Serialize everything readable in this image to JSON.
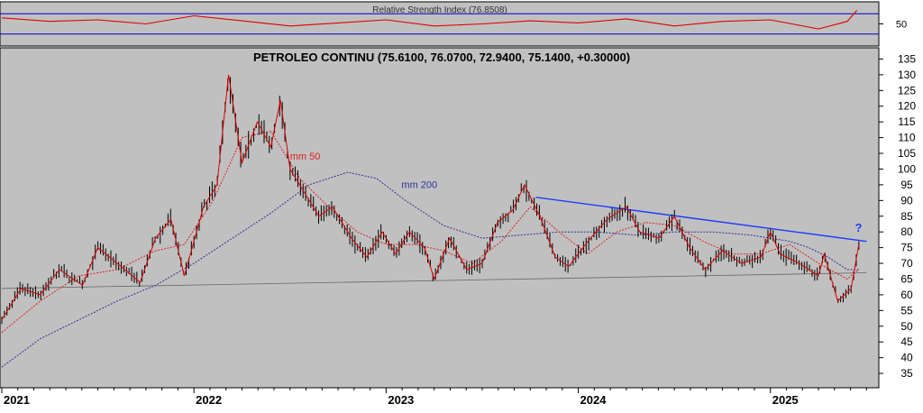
{
  "chart_data": [
    {
      "type": "line",
      "title": "Relative Strength Index (76.8508)",
      "yticks": [
        50
      ],
      "reference_lines": [
        70,
        30
      ],
      "last_value": 76.8508,
      "series": [
        {
          "x": [
            2021.0,
            2021.25,
            2021.5,
            2021.75,
            2022.0,
            2022.25,
            2022.5,
            2022.75,
            2023.0,
            2023.25,
            2023.5,
            2023.75,
            2024.0,
            2024.25,
            2024.5,
            2024.75,
            2025.0,
            2025.25,
            2025.4,
            2025.45
          ],
          "values": [
            62,
            55,
            58,
            50,
            66,
            56,
            46,
            52,
            58,
            46,
            50,
            56,
            52,
            60,
            46,
            55,
            58,
            40,
            55,
            76.85
          ]
        }
      ],
      "colors": {
        "series": "#e00000",
        "reference": "#0000cc"
      }
    },
    {
      "type": "line",
      "title": "PETROLEO CONTINU (75.6100, 76.0700, 72.9400, 75.1400, +0.30000)",
      "x_ticks": [
        "2021",
        "2022",
        "2023",
        "2024",
        "2025"
      ],
      "yticks": [
        35,
        40,
        45,
        50,
        55,
        60,
        65,
        70,
        75,
        80,
        85,
        90,
        95,
        100,
        105,
        110,
        115,
        120,
        125,
        130,
        135
      ],
      "ylim": [
        31,
        138
      ],
      "series": [
        {
          "name": "price",
          "x": [
            2021.0,
            2021.1,
            2021.2,
            2021.3,
            2021.42,
            2021.5,
            2021.6,
            2021.72,
            2021.8,
            2021.88,
            2021.95,
            2022.05,
            2022.12,
            2022.18,
            2022.25,
            2022.33,
            2022.4,
            2022.45,
            2022.5,
            2022.58,
            2022.65,
            2022.72,
            2022.82,
            2022.9,
            2022.98,
            2023.05,
            2023.12,
            2023.2,
            2023.25,
            2023.33,
            2023.42,
            2023.5,
            2023.58,
            2023.66,
            2023.72,
            2023.8,
            2023.88,
            2023.95,
            2024.05,
            2024.15,
            2024.25,
            2024.32,
            2024.42,
            2024.5,
            2024.58,
            2024.66,
            2024.75,
            2024.85,
            2024.95,
            2025.0,
            2025.05,
            2025.15,
            2025.25,
            2025.28,
            2025.35,
            2025.42,
            2025.46
          ],
          "values": [
            52,
            62,
            60,
            68,
            63,
            75,
            70,
            64,
            78,
            84,
            66,
            88,
            95,
            130,
            102,
            115,
            107,
            122,
            100,
            92,
            85,
            88,
            78,
            72,
            80,
            73,
            80,
            75,
            65,
            78,
            68,
            70,
            83,
            87,
            95,
            85,
            72,
            69,
            77,
            84,
            88,
            80,
            78,
            85,
            75,
            68,
            74,
            70,
            72,
            80,
            73,
            70,
            66,
            73,
            58,
            62,
            76
          ]
        },
        {
          "name": "mm 50",
          "x": [
            2021.0,
            2021.2,
            2021.4,
            2021.6,
            2021.8,
            2021.95,
            2022.1,
            2022.25,
            2022.4,
            2022.55,
            2022.7,
            2022.85,
            2023.0,
            2023.15,
            2023.3,
            2023.45,
            2023.6,
            2023.75,
            2023.9,
            2024.05,
            2024.2,
            2024.35,
            2024.5,
            2024.65,
            2024.8,
            2024.95,
            2025.1,
            2025.25,
            2025.4,
            2025.46
          ],
          "values": [
            48,
            58,
            66,
            68,
            74,
            76,
            90,
            110,
            112,
            97,
            88,
            80,
            76,
            76,
            74,
            70,
            77,
            88,
            80,
            73,
            80,
            83,
            82,
            77,
            73,
            73,
            76,
            70,
            65,
            68
          ]
        },
        {
          "name": "mm 200",
          "x": [
            2021.0,
            2021.2,
            2021.4,
            2021.6,
            2021.8,
            2022.0,
            2022.2,
            2022.4,
            2022.6,
            2022.8,
            2022.95,
            2023.1,
            2023.3,
            2023.5,
            2023.7,
            2023.9,
            2024.1,
            2024.3,
            2024.5,
            2024.7,
            2024.9,
            2025.0,
            2025.1,
            2025.2,
            2025.3,
            2025.4,
            2025.46
          ],
          "values": [
            37,
            46,
            52,
            58,
            63,
            70,
            78,
            86,
            95,
            99,
            97,
            90,
            82,
            78,
            79,
            80,
            80,
            79,
            80,
            80,
            79,
            78,
            77,
            75,
            72,
            68,
            68
          ]
        }
      ],
      "trendlines": [
        {
          "name": "resistance",
          "x": [
            2023.78,
            2025.5
          ],
          "values": [
            91,
            77
          ]
        },
        {
          "name": "support",
          "x": [
            2021.0,
            2025.5
          ],
          "values": [
            62,
            67
          ]
        }
      ],
      "annotations": [
        {
          "text": "mm 50",
          "x": 2022.5,
          "y": 103
        },
        {
          "text": "mm 200",
          "x": 2023.08,
          "y": 94
        },
        {
          "text": "?",
          "x": 2025.44,
          "y": 80
        }
      ],
      "colors": {
        "price": "#e00000",
        "bars": "#000000",
        "mm50": "#e02020",
        "mm200": "#3030a0",
        "resistance": "#1c3cff",
        "support": "#666666",
        "background": "#c0c0c0"
      }
    }
  ]
}
